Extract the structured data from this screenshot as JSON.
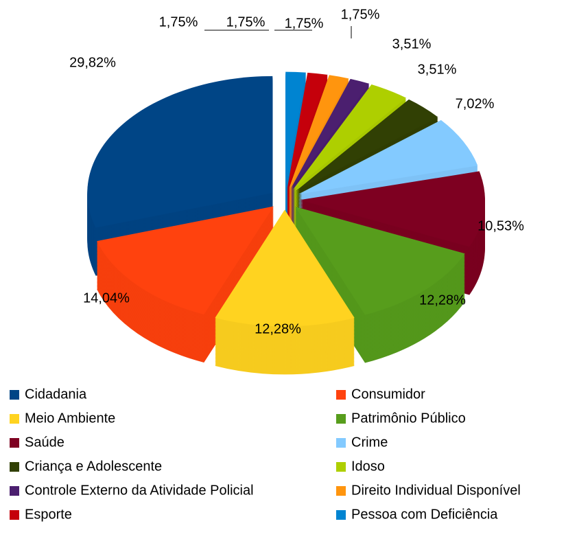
{
  "chart_data": {
    "type": "pie",
    "categories": [
      "Cidadania",
      "Consumidor",
      "Meio Ambiente",
      "Patrimônio Público",
      "Saúde",
      "Crime",
      "Criança e Adolescente",
      "Idoso",
      "Controle Externo da Atividade Policial",
      "Direito Individual Disponível",
      "Esporte",
      "Pessoa com Deficiência"
    ],
    "values": [
      29.82,
      14.04,
      12.28,
      12.28,
      10.53,
      7.02,
      3.51,
      3.51,
      1.75,
      1.75,
      1.75,
      1.75
    ],
    "value_labels": [
      "29,82%",
      "14,04%",
      "12,28%",
      "12,28%",
      "10,53%",
      "7,02%",
      "3,51%",
      "3,51%",
      "1,75%",
      "1,75%",
      "1,75%",
      "1,75%"
    ],
    "colors": [
      "#004586",
      "#ff420e",
      "#ffd320",
      "#579d1c",
      "#7e0021",
      "#83caff",
      "#314004",
      "#aecf00",
      "#4b1f6f",
      "#ff950e",
      "#c5000b",
      "#0084d1"
    ],
    "legend": "bottom"
  }
}
